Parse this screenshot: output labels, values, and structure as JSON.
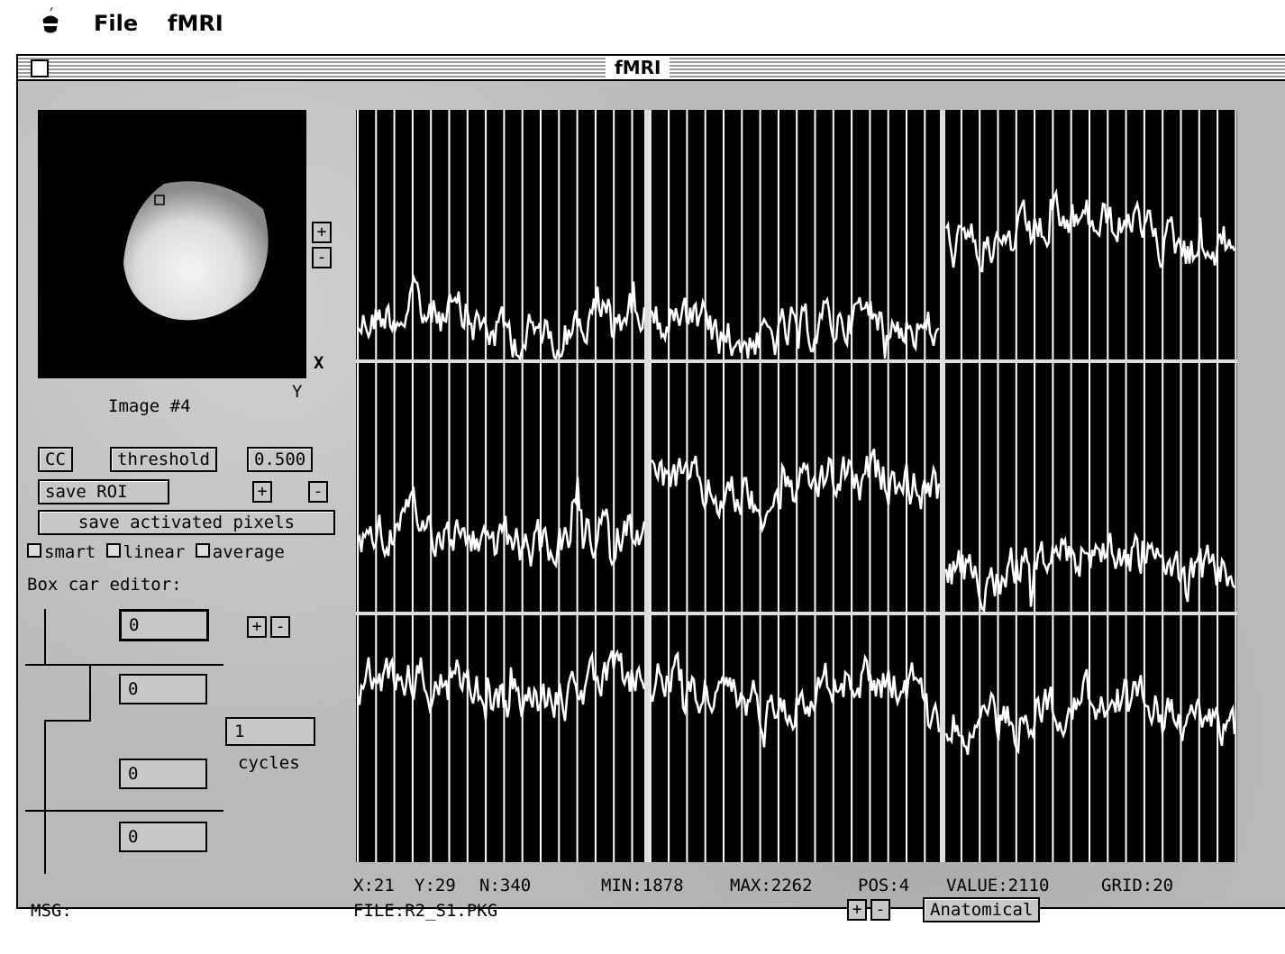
{
  "menu": {
    "items": [
      "File",
      "fMRI"
    ]
  },
  "window": {
    "title": "fMRI"
  },
  "image_panel": {
    "zoom_in": "+",
    "zoom_out": "-",
    "x_label": "X",
    "y_label": "Y",
    "caption": "Image #4"
  },
  "controls": {
    "cc": "CC",
    "threshold": "threshold",
    "threshold_value": "0.500",
    "save_roi": "save ROI",
    "plus": "+",
    "minus": "-",
    "save_activated": "save activated pixels",
    "checkboxes": [
      "smart",
      "linear",
      "average"
    ]
  },
  "box_car": {
    "label": "Box car editor:",
    "fields": [
      "0",
      "0",
      "0",
      "0"
    ],
    "plus": "+",
    "minus": "-",
    "cycles_value": "1",
    "cycles_label": "cycles"
  },
  "status": {
    "fields": [
      "X:21",
      "Y:29",
      "N:340",
      "MIN:1878",
      "MAX:2262",
      "POS:4",
      "VALUE:2110",
      "GRID:20"
    ],
    "file": "FILE:R2_S1.PKG",
    "msg": "MSG:",
    "plus": "+",
    "minus": "-",
    "mode": "Anatomical"
  }
}
